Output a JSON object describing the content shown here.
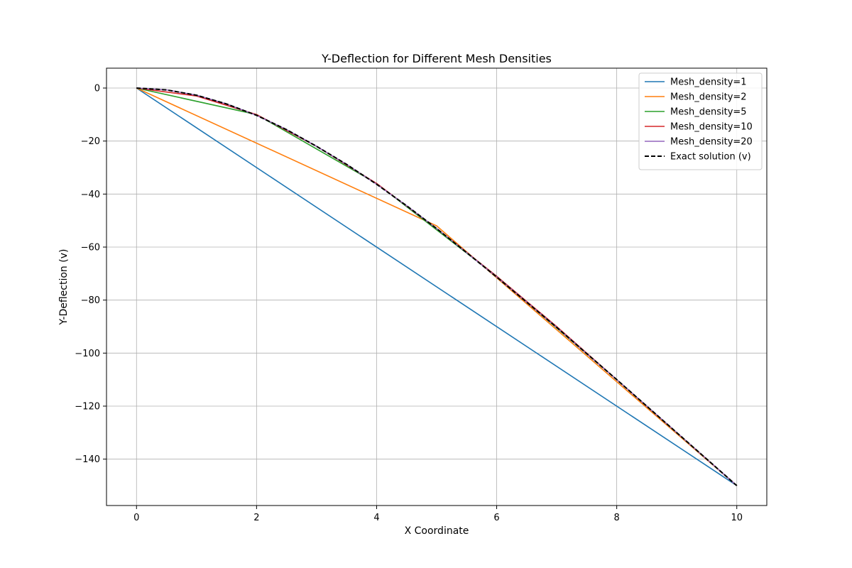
{
  "chart_data": {
    "type": "line",
    "title": "Y-Deflection for Different Mesh Densities",
    "xlabel": "X Coordinate",
    "ylabel": "Y-Deflection (v)",
    "xlim": [
      -0.5,
      10.5
    ],
    "ylim": [
      -157.5,
      7.5
    ],
    "xticks": [
      0,
      2,
      4,
      6,
      8,
      10
    ],
    "yticks": [
      0,
      -20,
      -40,
      -60,
      -80,
      -100,
      -120,
      -140
    ],
    "grid": true,
    "legend_position": "top-right",
    "series": [
      {
        "name": "Mesh_density=1",
        "color": "#1f77b4",
        "style": "solid",
        "x": [
          0,
          10
        ],
        "y": [
          0,
          -150
        ]
      },
      {
        "name": "Mesh_density=2",
        "color": "#ff7f0e",
        "style": "solid",
        "x": [
          0,
          5,
          10
        ],
        "y": [
          0,
          -52,
          -150
        ]
      },
      {
        "name": "Mesh_density=5",
        "color": "#2ca02c",
        "style": "solid",
        "x": [
          0,
          2,
          4,
          6,
          8,
          10
        ],
        "y": [
          0,
          -10,
          -36,
          -71,
          -110,
          -150
        ]
      },
      {
        "name": "Mesh_density=10",
        "color": "#d62728",
        "style": "solid",
        "x": [
          0,
          1,
          2,
          3,
          4,
          5,
          6,
          7,
          8,
          9,
          10
        ],
        "y": [
          0,
          -3,
          -10,
          -22,
          -36,
          -53,
          -71,
          -90,
          -110,
          -130,
          -150
        ]
      },
      {
        "name": "Mesh_density=20",
        "color": "#9467bd",
        "style": "solid",
        "x": [
          0,
          0.5,
          1,
          1.5,
          2,
          2.5,
          3,
          3.5,
          4,
          4.5,
          5,
          5.5,
          6,
          6.5,
          7,
          7.5,
          8,
          8.5,
          9,
          9.5,
          10
        ],
        "y": [
          0,
          -0.7,
          -2.7,
          -6.0,
          -10.3,
          -15.7,
          -22.0,
          -28.8,
          -36.3,
          -44.4,
          -53.0,
          -62.1,
          -71.3,
          -80.8,
          -90.3,
          -100.2,
          -110.0,
          -120.0,
          -130.0,
          -140.0,
          -150.0
        ]
      },
      {
        "name": "Exact solution (v)",
        "color": "#000000",
        "style": "dashed",
        "x": [
          0,
          0.5,
          1,
          1.5,
          2,
          2.5,
          3,
          3.5,
          4,
          4.5,
          5,
          5.5,
          6,
          6.5,
          7,
          7.5,
          8,
          8.5,
          9,
          9.5,
          10
        ],
        "y": [
          0,
          -0.7,
          -2.7,
          -6.0,
          -10.3,
          -15.7,
          -22.0,
          -28.8,
          -36.3,
          -44.4,
          -53.0,
          -62.1,
          -71.3,
          -80.8,
          -90.3,
          -100.2,
          -110.0,
          -120.0,
          -130.0,
          -140.0,
          -150.0
        ]
      }
    ]
  }
}
